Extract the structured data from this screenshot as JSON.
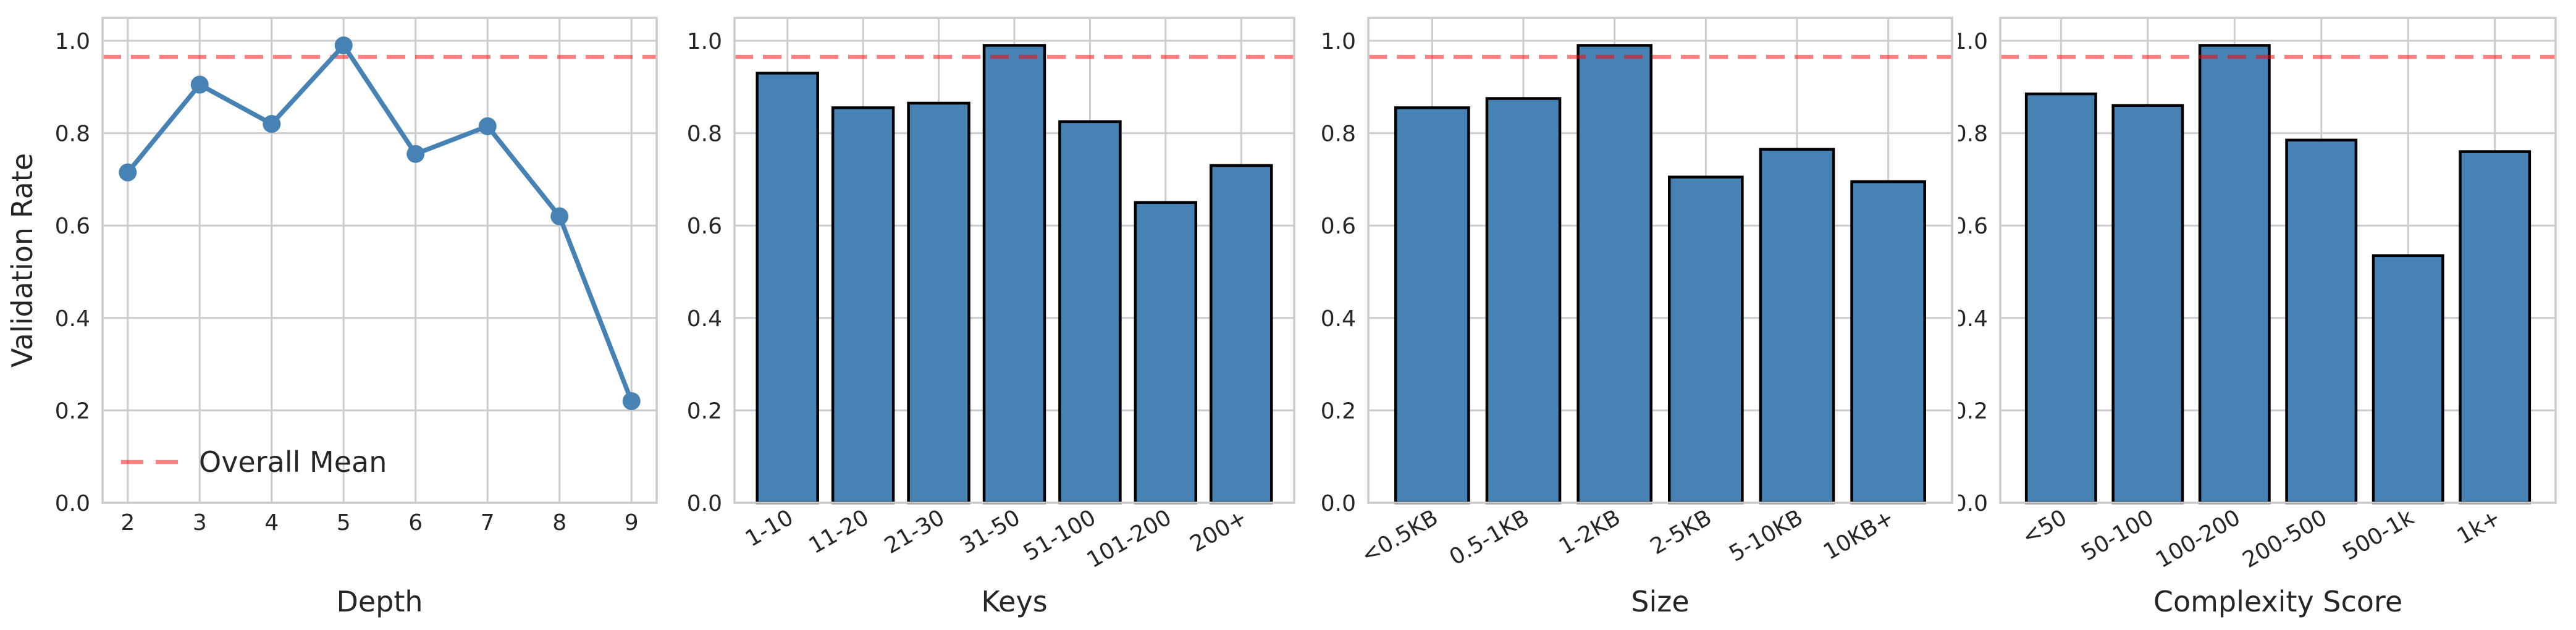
{
  "figure": {
    "ylabel": "Validation Rate",
    "legend_label": "Overall Mean",
    "overall_mean": 0.965,
    "y_tick_labels": [
      "0.0",
      "0.2",
      "0.4",
      "0.6",
      "0.8",
      "1.0"
    ],
    "ylim": [
      0,
      1.05
    ],
    "grid": true,
    "colors": {
      "series_blue": "#4682B4",
      "mean_line_red": "#FF0000",
      "mean_line_opacity": 0.5,
      "bar_edge": "#000000",
      "grid_gray": "#CCCCCC",
      "spine_gray": "#CBCBCB",
      "text_dark": "#262626",
      "background": "#FFFFFF"
    }
  },
  "chart_data": [
    {
      "type": "line",
      "xlabel": "Depth",
      "ylabel": "Validation Rate",
      "categories": [
        "2",
        "3",
        "4",
        "5",
        "6",
        "7",
        "8",
        "9"
      ],
      "values": [
        0.715,
        0.905,
        0.82,
        0.99,
        0.755,
        0.815,
        0.62,
        0.22
      ],
      "mean": 0.965,
      "legend": [
        "Overall Mean"
      ],
      "legend_position": "lower-left",
      "ylim": [
        0,
        1.05
      ]
    },
    {
      "type": "bar",
      "xlabel": "Keys",
      "categories": [
        "1-10",
        "11-20",
        "21-30",
        "31-50",
        "51-100",
        "101-200",
        "200+"
      ],
      "values": [
        0.93,
        0.855,
        0.865,
        0.99,
        0.825,
        0.65,
        0.73
      ],
      "mean": 0.965,
      "ylim": [
        0,
        1.05
      ]
    },
    {
      "type": "bar",
      "xlabel": "Size",
      "categories": [
        "<0.5KB",
        "0.5-1KB",
        "1-2KB",
        "2-5KB",
        "5-10KB",
        "10KB+"
      ],
      "values": [
        0.855,
        0.875,
        0.99,
        0.705,
        0.765,
        0.695
      ],
      "mean": 0.965,
      "ylim": [
        0,
        1.05
      ]
    },
    {
      "type": "bar",
      "xlabel": "Complexity Score",
      "categories": [
        "<50",
        "50-100",
        "100-200",
        "200-500",
        "500-1k",
        "1k+"
      ],
      "values": [
        0.885,
        0.86,
        0.99,
        0.785,
        0.535,
        0.76
      ],
      "mean": 0.965,
      "ylim": [
        0,
        1.05
      ]
    }
  ]
}
